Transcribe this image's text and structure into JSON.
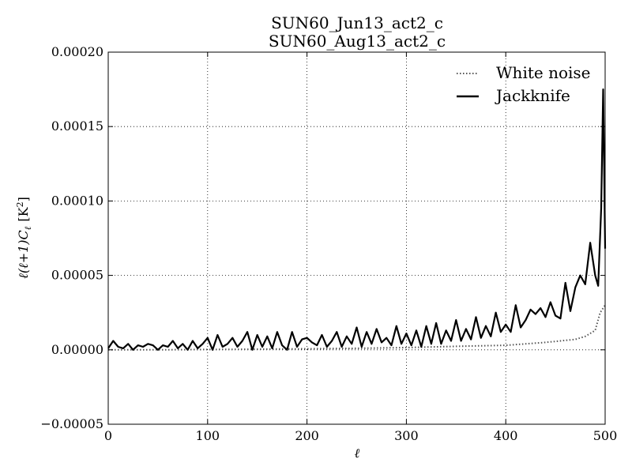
{
  "chart_data": {
    "type": "line",
    "title": "SUN60_Jun13_act2_c",
    "subtitle": "SUN60_Aug13_act2_c",
    "xlabel": "ℓ",
    "ylabel": "ℓ(ℓ+1)C",
    "ylabel_sub": "ℓ",
    "ylabel_unit": "[K",
    "ylabel_unit_sup": "2",
    "ylabel_unit_end": "]",
    "xlim": [
      0,
      500
    ],
    "ylim": [
      -5e-05,
      0.0002
    ],
    "x_ticks": [
      0,
      100,
      200,
      300,
      400,
      500
    ],
    "x_tick_labels": [
      "0",
      "100",
      "200",
      "300",
      "400",
      "500"
    ],
    "y_ticks": [
      -5e-05,
      0,
      5e-05,
      0.0001,
      0.00015,
      0.0002
    ],
    "y_tick_labels": [
      "−0.00005",
      "0.00000",
      "0.00005",
      "0.00010",
      "0.00015",
      "0.00020"
    ],
    "grid": true,
    "legend_position": "top-right",
    "series": [
      {
        "name": "White noise",
        "style": "dotted",
        "color": "#555555",
        "x": [
          0,
          50,
          100,
          150,
          200,
          250,
          300,
          330,
          360,
          400,
          440,
          470,
          480,
          490,
          495,
          500
        ],
        "y": [
          0.0,
          0.0,
          2e-07,
          4e-07,
          7e-07,
          1e-06,
          1.5e-06,
          2e-06,
          2.5e-06,
          3e-06,
          5e-06,
          7e-06,
          9e-06,
          1.3e-05,
          2.5e-05,
          3e-05
        ]
      },
      {
        "name": "Jackknife",
        "style": "solid",
        "color": "#000000",
        "x": [
          0,
          5,
          10,
          15,
          20,
          25,
          30,
          35,
          40,
          45,
          50,
          55,
          60,
          65,
          70,
          75,
          80,
          85,
          90,
          95,
          100,
          105,
          110,
          115,
          120,
          125,
          130,
          135,
          140,
          145,
          150,
          155,
          160,
          165,
          170,
          175,
          180,
          185,
          190,
          195,
          200,
          205,
          210,
          215,
          220,
          225,
          230,
          235,
          240,
          245,
          250,
          255,
          260,
          265,
          270,
          275,
          280,
          285,
          290,
          295,
          300,
          305,
          310,
          315,
          320,
          325,
          330,
          335,
          340,
          345,
          350,
          355,
          360,
          365,
          370,
          375,
          380,
          385,
          390,
          395,
          400,
          405,
          410,
          415,
          420,
          425,
          430,
          435,
          440,
          445,
          450,
          455,
          460,
          465,
          470,
          475,
          480,
          485,
          490,
          493,
          496,
          498,
          500
        ],
        "y": [
          1e-06,
          6e-06,
          2e-06,
          1e-06,
          4e-06,
          0.0,
          3e-06,
          2e-06,
          4e-06,
          3e-06,
          0.0,
          3e-06,
          2e-06,
          6e-06,
          1e-06,
          4e-06,
          0.0,
          6e-06,
          1e-06,
          4e-06,
          8e-06,
          0.0,
          1e-05,
          2e-06,
          4e-06,
          8e-06,
          2e-06,
          6e-06,
          1.2e-05,
          0.0,
          1e-05,
          2e-06,
          9e-06,
          1e-06,
          1.2e-05,
          3e-06,
          0.0,
          1.2e-05,
          2e-06,
          7e-06,
          8e-06,
          5e-06,
          3e-06,
          1e-05,
          2e-06,
          6e-06,
          1.2e-05,
          2e-06,
          9e-06,
          4e-06,
          1.5e-05,
          2e-06,
          1.2e-05,
          4e-06,
          1.4e-05,
          5e-06,
          8e-06,
          3e-06,
          1.6e-05,
          4e-06,
          1.1e-05,
          3e-06,
          1.3e-05,
          2e-06,
          1.6e-05,
          4e-06,
          1.8e-05,
          4e-06,
          1.3e-05,
          6e-06,
          2e-05,
          6e-06,
          1.4e-05,
          7e-06,
          2.2e-05,
          8e-06,
          1.6e-05,
          9e-06,
          2.5e-05,
          1.2e-05,
          1.7e-05,
          1.2e-05,
          3e-05,
          1.5e-05,
          2e-05,
          2.7e-05,
          2.4e-05,
          2.8e-05,
          2.2e-05,
          3.2e-05,
          2.3e-05,
          2.1e-05,
          4.5e-05,
          2.6e-05,
          4.2e-05,
          5e-05,
          4.4e-05,
          7.2e-05,
          5e-05,
          4.3e-05,
          9.5e-05,
          0.000175,
          6.8e-05
        ]
      }
    ]
  }
}
